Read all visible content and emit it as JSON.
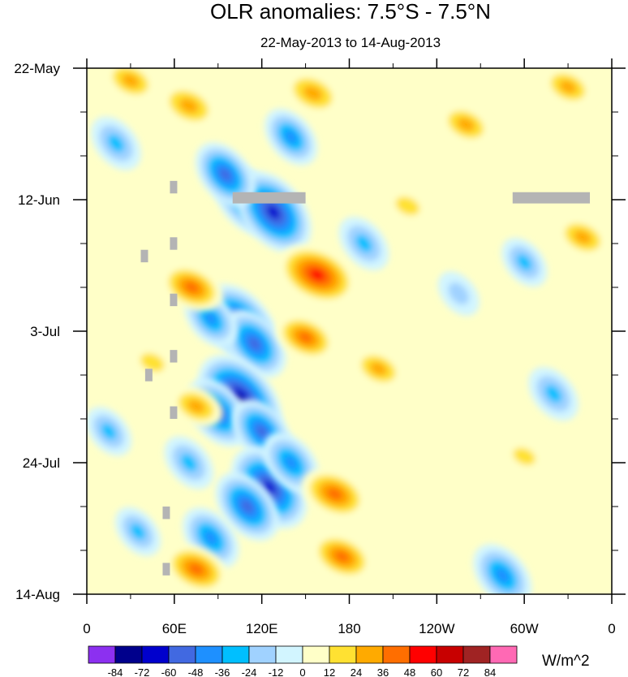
{
  "chart_data": {
    "type": "heatmap",
    "title": "OLR anomalies: 7.5°S - 7.5°N",
    "subtitle": "22-May-2013 to 14-Aug-2013",
    "xlabel": "",
    "ylabel": "",
    "x_ticks": [
      {
        "lon": 0,
        "label": "0"
      },
      {
        "lon": 60,
        "label": "60E"
      },
      {
        "lon": 120,
        "label": "120E"
      },
      {
        "lon": 180,
        "label": "180"
      },
      {
        "lon": 240,
        "label": "120W"
      },
      {
        "lon": 300,
        "label": "60W"
      },
      {
        "lon": 360,
        "label": "0"
      }
    ],
    "xlim": [
      0,
      360
    ],
    "y_ticks": [
      {
        "day": 0,
        "label": "22-May"
      },
      {
        "day": 21,
        "label": "12-Jun"
      },
      {
        "day": 42,
        "label": "3-Jul"
      },
      {
        "day": 63,
        "label": "24-Jul"
      },
      {
        "day": 84,
        "label": "14-Aug"
      }
    ],
    "ylim": [
      0,
      84
    ],
    "colorbar": {
      "labels": [
        "-84",
        "-72",
        "-60",
        "-48",
        "-36",
        "-24",
        "-12",
        "0",
        "12",
        "24",
        "36",
        "48",
        "60",
        "72",
        "84"
      ],
      "colors": [
        "#8c30f0",
        "#00008c",
        "#0000cd",
        "#4169e1",
        "#1e90ff",
        "#00bfff",
        "#a0d2ff",
        "#d2f5ff",
        "#ffffc8",
        "#ffe132",
        "#ffaa00",
        "#ff6e00",
        "#ff0000",
        "#c80000",
        "#a02323",
        "#ff69b4"
      ],
      "units": "W/m^2"
    },
    "features": [
      {
        "kind": "negative",
        "lon": 110,
        "day": 21,
        "value": -60
      },
      {
        "kind": "negative",
        "lon": 128,
        "day": 23,
        "value": -72
      },
      {
        "kind": "negative",
        "lon": 95,
        "day": 17,
        "value": -50
      },
      {
        "kind": "negative",
        "lon": 105,
        "day": 41,
        "value": -72
      },
      {
        "kind": "negative",
        "lon": 115,
        "day": 44,
        "value": -55
      },
      {
        "kind": "negative",
        "lon": 85,
        "day": 40,
        "value": -40
      },
      {
        "kind": "negative",
        "lon": 105,
        "day": 53,
        "value": -84
      },
      {
        "kind": "negative",
        "lon": 90,
        "day": 55,
        "value": -55
      },
      {
        "kind": "negative",
        "lon": 120,
        "day": 58,
        "value": -50
      },
      {
        "kind": "negative",
        "lon": 125,
        "day": 67,
        "value": -72
      },
      {
        "kind": "negative",
        "lon": 110,
        "day": 70,
        "value": -55
      },
      {
        "kind": "negative",
        "lon": 85,
        "day": 75,
        "value": -45
      },
      {
        "kind": "negative",
        "lon": 140,
        "day": 63,
        "value": -45
      },
      {
        "kind": "negative",
        "lon": 70,
        "day": 63,
        "value": -35
      },
      {
        "kind": "negative",
        "lon": 20,
        "day": 12,
        "value": -36
      },
      {
        "kind": "negative",
        "lon": 140,
        "day": 11,
        "value": -40
      },
      {
        "kind": "negative",
        "lon": 190,
        "day": 28,
        "value": -36
      },
      {
        "kind": "negative",
        "lon": 300,
        "day": 31,
        "value": -30
      },
      {
        "kind": "negative",
        "lon": 320,
        "day": 52,
        "value": -36
      },
      {
        "kind": "negative",
        "lon": 285,
        "day": 81,
        "value": -48
      },
      {
        "kind": "negative",
        "lon": 15,
        "day": 58,
        "value": -30
      },
      {
        "kind": "negative",
        "lon": 35,
        "day": 74,
        "value": -30
      },
      {
        "kind": "negative",
        "lon": 255,
        "day": 36,
        "value": -24
      },
      {
        "kind": "positive",
        "lon": 158,
        "day": 33,
        "value": 60
      },
      {
        "kind": "positive",
        "lon": 170,
        "day": 68,
        "value": 45
      },
      {
        "kind": "positive",
        "lon": 175,
        "day": 78,
        "value": 40
      },
      {
        "kind": "positive",
        "lon": 75,
        "day": 80,
        "value": 42
      },
      {
        "kind": "positive",
        "lon": 72,
        "day": 35,
        "value": 40
      },
      {
        "kind": "positive",
        "lon": 150,
        "day": 43,
        "value": 38
      },
      {
        "kind": "positive",
        "lon": 155,
        "day": 4,
        "value": 36
      },
      {
        "kind": "positive",
        "lon": 260,
        "day": 9,
        "value": 30
      },
      {
        "kind": "positive",
        "lon": 70,
        "day": 6,
        "value": 36
      },
      {
        "kind": "positive",
        "lon": 30,
        "day": 2,
        "value": 30
      },
      {
        "kind": "positive",
        "lon": 200,
        "day": 48,
        "value": 28
      },
      {
        "kind": "positive",
        "lon": 340,
        "day": 27,
        "value": 30
      },
      {
        "kind": "positive",
        "lon": 75,
        "day": 54,
        "value": 30
      },
      {
        "kind": "positive",
        "lon": 330,
        "day": 3,
        "value": 28
      },
      {
        "kind": "positive",
        "lon": 45,
        "day": 47,
        "value": 24
      },
      {
        "kind": "positive",
        "lon": 300,
        "day": 62,
        "value": 20
      },
      {
        "kind": "positive",
        "lon": 220,
        "day": 22,
        "value": 24
      }
    ],
    "missing_data": [
      {
        "lon0": 100,
        "lon1": 150,
        "day0": 19.8,
        "day1": 21.6
      },
      {
        "lon0": 292,
        "lon1": 345,
        "day0": 19.8,
        "day1": 21.6
      },
      {
        "lon0": 57,
        "lon1": 62,
        "day0": 18,
        "day1": 20
      },
      {
        "lon0": 57,
        "lon1": 62,
        "day0": 27,
        "day1": 29
      },
      {
        "lon0": 37,
        "lon1": 42,
        "day0": 29,
        "day1": 31
      },
      {
        "lon0": 57,
        "lon1": 62,
        "day0": 36,
        "day1": 38
      },
      {
        "lon0": 57,
        "lon1": 62,
        "day0": 45,
        "day1": 47
      },
      {
        "lon0": 40,
        "lon1": 45,
        "day0": 48,
        "day1": 50
      },
      {
        "lon0": 57,
        "lon1": 62,
        "day0": 54,
        "day1": 56
      },
      {
        "lon0": 52,
        "lon1": 57,
        "day0": 70,
        "day1": 72
      },
      {
        "lon0": 52,
        "lon1": 57,
        "day0": 79,
        "day1": 81
      }
    ]
  }
}
